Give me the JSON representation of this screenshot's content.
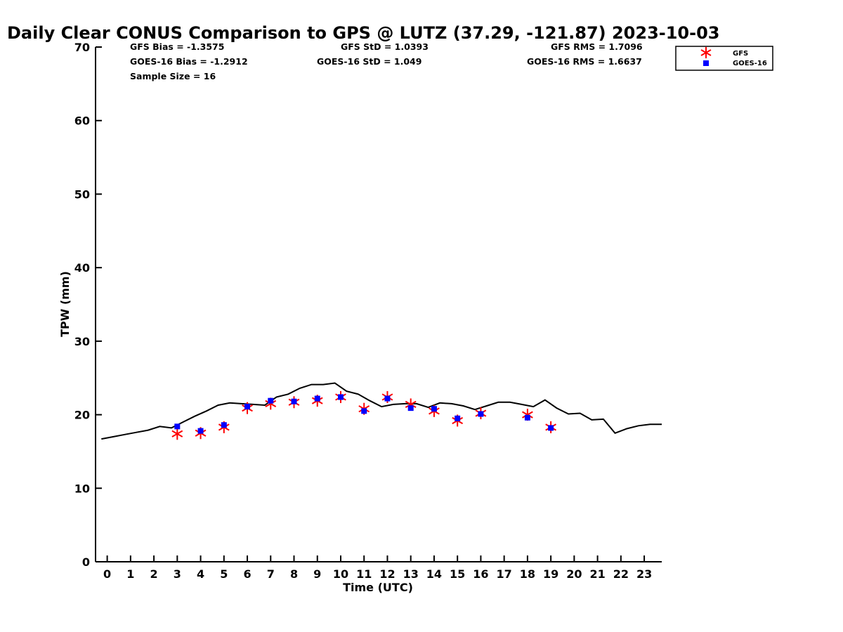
{
  "chart_data": {
    "type": "scatter",
    "title": "Daily Clear CONUS Comparison to GPS @ LUTZ (37.29, -121.87) 2023-10-03",
    "xlabel": "Time (UTC)",
    "ylabel": "TPW (mm)",
    "xlim": [
      -0.5,
      23.75
    ],
    "ylim": [
      0,
      70
    ],
    "x_ticks": [
      "0",
      "1",
      "2",
      "3",
      "4",
      "5",
      "6",
      "7",
      "8",
      "9",
      "10",
      "11",
      "12",
      "13",
      "14",
      "15",
      "16",
      "17",
      "18",
      "19",
      "20",
      "21",
      "22",
      "23"
    ],
    "y_ticks": [
      "0",
      "10",
      "20",
      "30",
      "40",
      "50",
      "60",
      "70"
    ],
    "grid": false,
    "legend_position": "top-right",
    "stats": {
      "gfs_bias": "GFS Bias = -1.3575",
      "gfs_std": "GFS StD = 1.0393",
      "gfs_rms": "GFS RMS = 1.7096",
      "goes_bias": "GOES-16 Bias = -1.2912",
      "goes_std": "GOES-16 StD = 1.049",
      "goes_rms": "GOES-16 RMS = 1.6637",
      "sample_size": "Sample Size = 16"
    },
    "series": [
      {
        "name": "GFS",
        "kind": "scatter",
        "marker": "asterisk",
        "color": "#ff0000",
        "points": [
          [
            3,
            17.4
          ],
          [
            4,
            17.5
          ],
          [
            5,
            18.3
          ],
          [
            6,
            20.9
          ],
          [
            7,
            21.5
          ],
          [
            8,
            21.7
          ],
          [
            9,
            21.9
          ],
          [
            10,
            22.4
          ],
          [
            11,
            20.8
          ],
          [
            12,
            22.4
          ],
          [
            13,
            21.4
          ],
          [
            14,
            20.5
          ],
          [
            15,
            19.2
          ],
          [
            16,
            20.2
          ],
          [
            18,
            20.0
          ],
          [
            19,
            18.3
          ]
        ]
      },
      {
        "name": "GOES-16",
        "kind": "scatter",
        "marker": "square",
        "color": "#0000ff",
        "points": [
          [
            3,
            18.4
          ],
          [
            4,
            17.8
          ],
          [
            5,
            18.6
          ],
          [
            6,
            21.1
          ],
          [
            7,
            21.9
          ],
          [
            8,
            21.8
          ],
          [
            9,
            22.2
          ],
          [
            10,
            22.4
          ],
          [
            11,
            20.5
          ],
          [
            12,
            22.2
          ],
          [
            13,
            20.9
          ],
          [
            14,
            20.8
          ],
          [
            15,
            19.5
          ],
          [
            16,
            20.1
          ],
          [
            18,
            19.6
          ],
          [
            19,
            18.2
          ]
        ]
      },
      {
        "kind": "line",
        "color": "#000000",
        "points": [
          [
            -0.25,
            16.7
          ],
          [
            0.25,
            17.0
          ],
          [
            0.75,
            17.3
          ],
          [
            1.25,
            17.6
          ],
          [
            1.75,
            17.9
          ],
          [
            2.25,
            18.4
          ],
          [
            2.75,
            18.2
          ],
          [
            3.25,
            19.0
          ],
          [
            3.75,
            19.8
          ],
          [
            4.25,
            20.5
          ],
          [
            4.75,
            21.3
          ],
          [
            5.25,
            21.6
          ],
          [
            5.75,
            21.5
          ],
          [
            6.25,
            21.4
          ],
          [
            6.75,
            21.3
          ],
          [
            7.25,
            22.4
          ],
          [
            7.75,
            22.8
          ],
          [
            8.25,
            23.6
          ],
          [
            8.75,
            24.1
          ],
          [
            9.25,
            24.1
          ],
          [
            9.75,
            24.3
          ],
          [
            10.25,
            23.2
          ],
          [
            10.75,
            22.8
          ],
          [
            11.25,
            21.9
          ],
          [
            11.75,
            21.1
          ],
          [
            12.25,
            21.4
          ],
          [
            12.75,
            21.5
          ],
          [
            13.25,
            21.5
          ],
          [
            13.75,
            21.0
          ],
          [
            14.25,
            21.6
          ],
          [
            14.75,
            21.5
          ],
          [
            15.25,
            21.2
          ],
          [
            15.75,
            20.7
          ],
          [
            16.25,
            21.2
          ],
          [
            16.75,
            21.7
          ],
          [
            17.25,
            21.7
          ],
          [
            17.75,
            21.4
          ],
          [
            18.25,
            21.1
          ],
          [
            18.75,
            22.0
          ],
          [
            19.25,
            20.9
          ],
          [
            19.75,
            20.1
          ],
          [
            20.25,
            20.2
          ],
          [
            20.75,
            19.3
          ],
          [
            21.25,
            19.4
          ],
          [
            21.75,
            17.5
          ],
          [
            22.25,
            18.1
          ],
          [
            22.75,
            18.5
          ],
          [
            23.25,
            18.7
          ],
          [
            23.75,
            18.7
          ]
        ]
      }
    ]
  }
}
